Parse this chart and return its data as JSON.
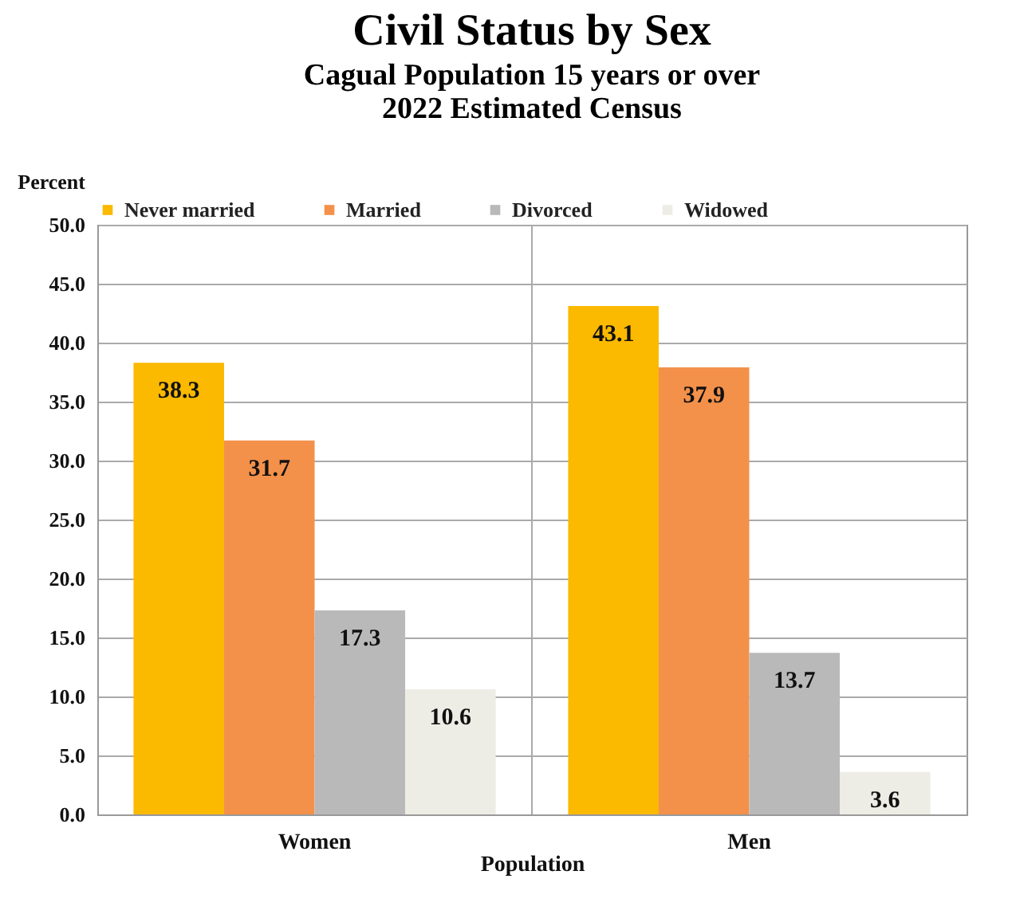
{
  "chart_data": {
    "type": "bar",
    "title": "Civil Status by Sex",
    "subtitle": "Cagual Population 15 years or over\n2022 Estimated Census",
    "xlabel": "Population",
    "ylabel": "Percent",
    "categories": [
      "Women",
      "Men"
    ],
    "series": [
      {
        "name": "Never married",
        "color": "#fbb900",
        "values": [
          38.3,
          43.1
        ]
      },
      {
        "name": "Married",
        "color": "#f3914a",
        "values": [
          31.7,
          37.9
        ]
      },
      {
        "name": "Divorced",
        "color": "#b9b9b9",
        "values": [
          17.3,
          13.7
        ]
      },
      {
        "name": "Widowed",
        "color": "#eeede5",
        "values": [
          10.6,
          3.6
        ]
      }
    ],
    "ylim": [
      0,
      50
    ],
    "yticks": [
      {
        "value": 0,
        "label": "0.0"
      },
      {
        "value": 5,
        "label": "5.0"
      },
      {
        "value": 10,
        "label": "10.0"
      },
      {
        "value": 15,
        "label": "15.0"
      },
      {
        "value": 20,
        "label": "20.0"
      },
      {
        "value": 25,
        "label": "25.0"
      },
      {
        "value": 30,
        "label": "30.0"
      },
      {
        "value": 35,
        "label": "35.0"
      },
      {
        "value": 40,
        "label": "40.0"
      },
      {
        "value": 45,
        "label": "45.0"
      },
      {
        "value": 50,
        "label": "50.0"
      }
    ],
    "grid": true,
    "legend": "top",
    "data_labels": true
  }
}
